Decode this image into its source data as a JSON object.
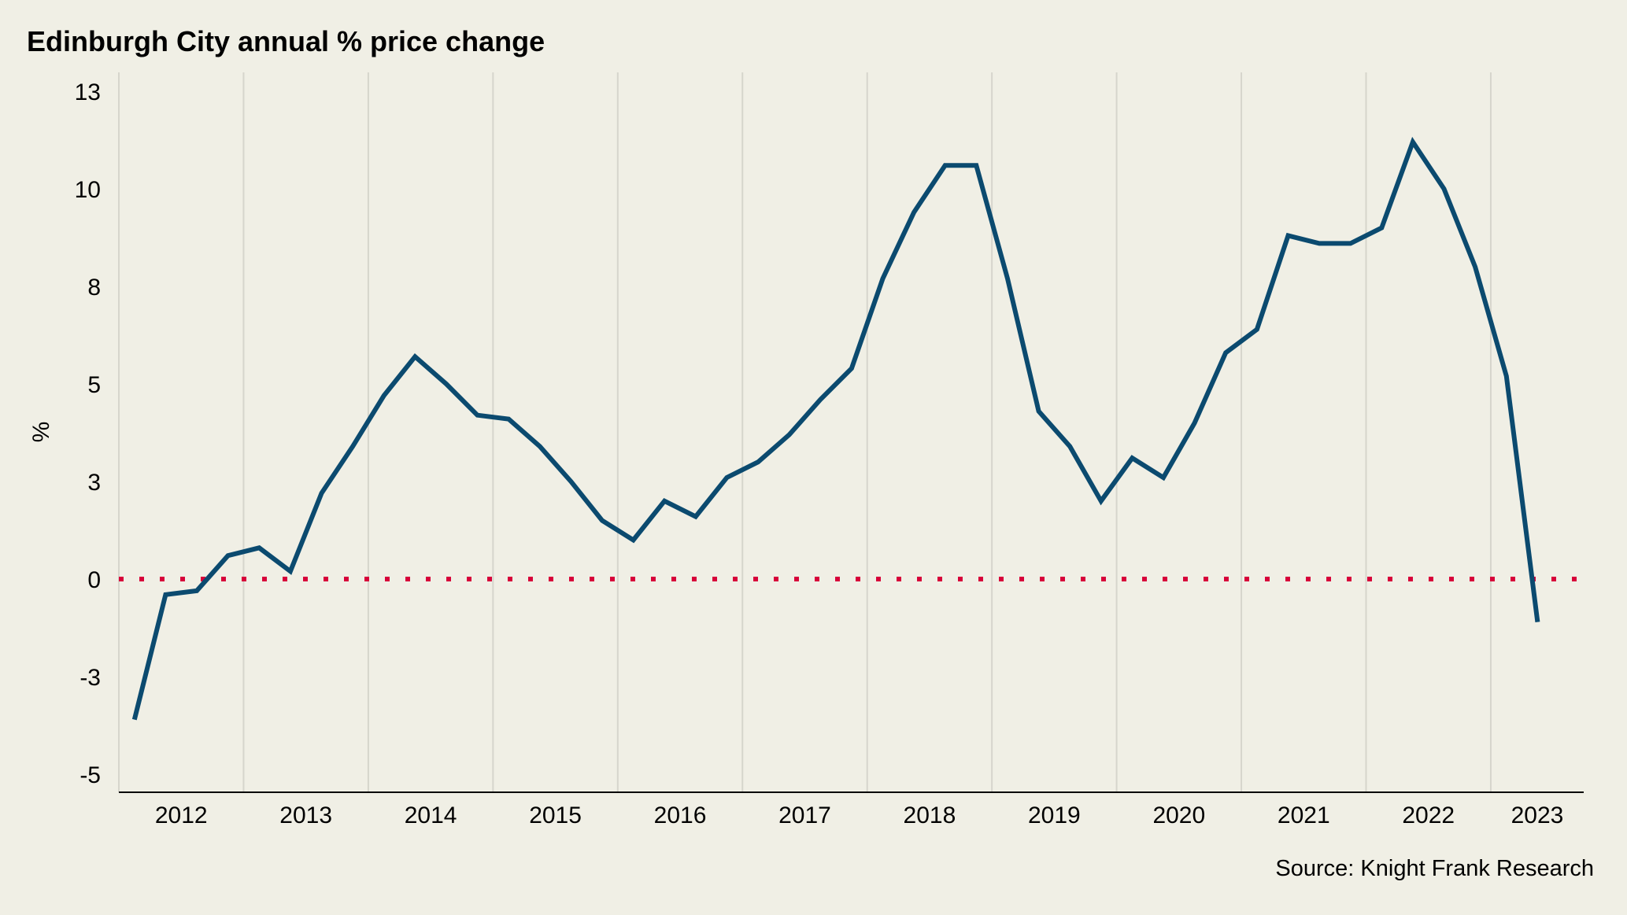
{
  "chart_data": {
    "type": "line",
    "title": "Edinburgh City annual % price change",
    "source": "Source: Knight Frank Research",
    "xlabel": "",
    "ylabel": "%",
    "x_periods": "quarterly, 2012 Q1 – 2023 Q2",
    "categories": [
      "2012",
      "2013",
      "2014",
      "2015",
      "2016",
      "2017",
      "2018",
      "2019",
      "2020",
      "2021",
      "2022",
      "2023"
    ],
    "ylim": [
      -5.5,
      13
    ],
    "yticks": [
      {
        "value": 12.5,
        "label": "13"
      },
      {
        "value": 10,
        "label": "10"
      },
      {
        "value": 7.5,
        "label": "8"
      },
      {
        "value": 5,
        "label": "5"
      },
      {
        "value": 2.5,
        "label": "3"
      },
      {
        "value": 0,
        "label": "0"
      },
      {
        "value": -2.5,
        "label": "-3"
      },
      {
        "value": -5,
        "label": "-5"
      }
    ],
    "grid": "vertical lines between years",
    "reference_line": {
      "value": 0,
      "style": "dotted",
      "color": "#D7003A"
    },
    "series": [
      {
        "name": "Edinburgh City annual % price change",
        "color": "#0B4A6F",
        "values": [
          -3.6,
          -0.4,
          -0.3,
          0.6,
          0.8,
          0.2,
          2.2,
          3.4,
          4.7,
          5.7,
          5.0,
          4.2,
          4.1,
          3.4,
          2.5,
          1.5,
          1.0,
          2.0,
          1.6,
          2.6,
          3.0,
          3.7,
          4.6,
          5.4,
          7.7,
          9.4,
          10.6,
          10.6,
          7.7,
          4.3,
          3.4,
          2.0,
          3.1,
          2.6,
          4.0,
          5.8,
          6.4,
          8.8,
          8.6,
          8.6,
          9.0,
          11.2,
          10.0,
          8.0,
          5.2,
          -1.1
        ]
      }
    ]
  }
}
